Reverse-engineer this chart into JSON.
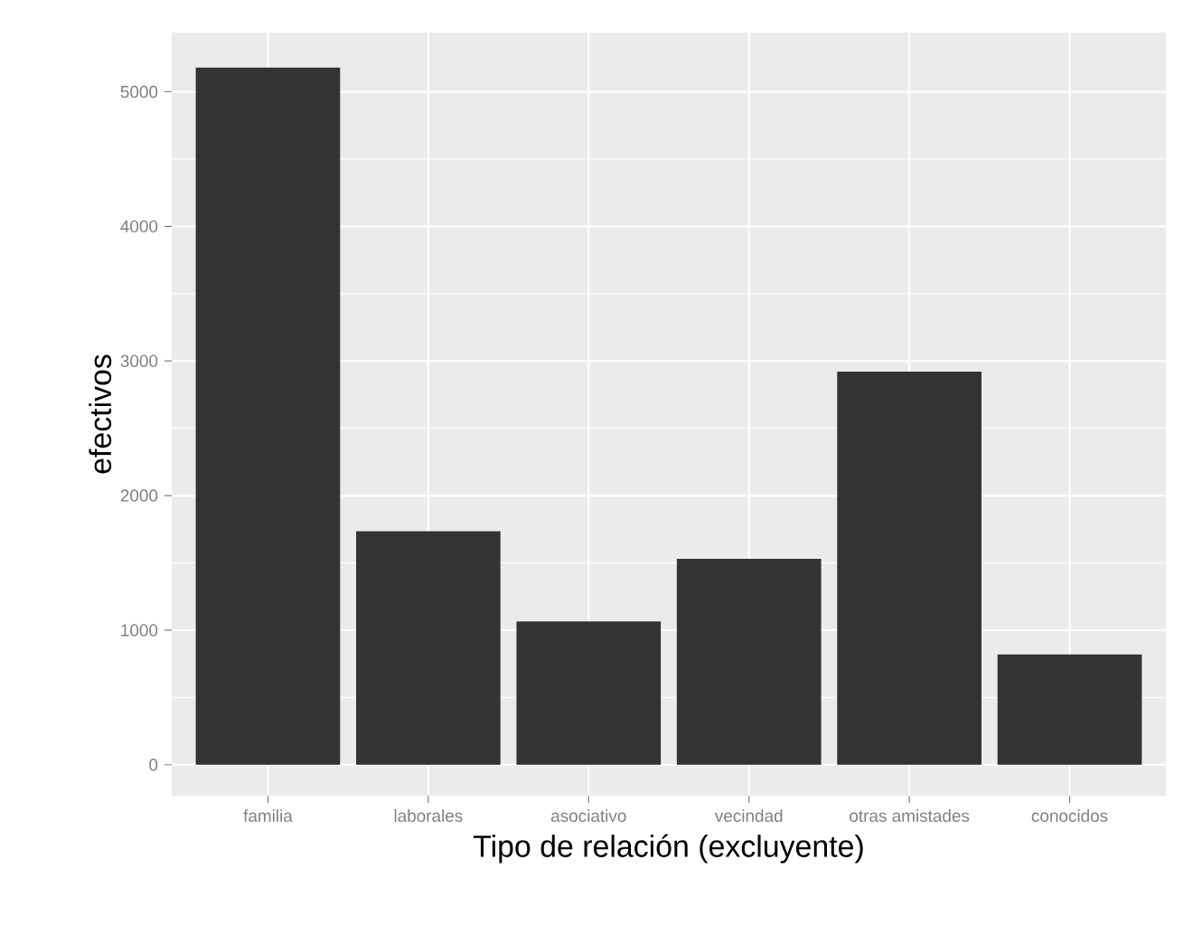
{
  "chart_data": {
    "type": "bar",
    "xlabel": "Tipo de relación (excluyente)",
    "ylabel": "efectivos",
    "categories": [
      "familia",
      "laborales",
      "asociativo",
      "vecindad",
      "otras amistades",
      "conocidos"
    ],
    "values": [
      5180,
      1735,
      1065,
      1530,
      2920,
      820
    ],
    "color": "#333333",
    "ylim": [
      -230,
      5440
    ],
    "yticks": [
      0,
      1000,
      2000,
      3000,
      4000,
      5000
    ],
    "grid": true
  }
}
